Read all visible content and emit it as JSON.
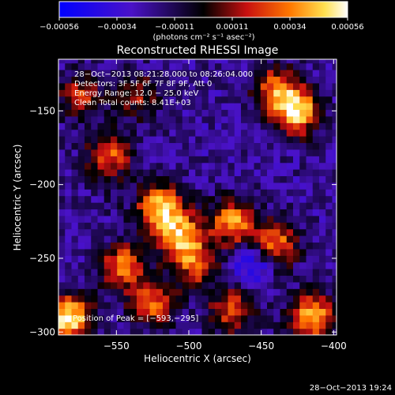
{
  "chart_data": {
    "type": "heatmap",
    "title": "Reconstructed RHESSI Image",
    "xlabel": "Heliocentric X (arcsec)",
    "ylabel": "Heliocentric Y (arcsec)",
    "xlim": [
      -590,
      -398
    ],
    "ylim": [
      -302,
      -115
    ],
    "x_ticks": [
      -550,
      -500,
      -450,
      -400
    ],
    "y_ticks": [
      -300,
      -250,
      -200,
      -150
    ],
    "x_tick_labels": [
      "−550",
      "−500",
      "−450",
      "−400"
    ],
    "y_tick_labels": [
      "−300",
      "−250",
      "−200",
      "−150"
    ],
    "colorbar": {
      "range": [
        -0.00056,
        0.00056
      ],
      "tick_labels": [
        "−0.00056",
        "−0.00034",
        "−0.00011",
        "0.00011",
        "0.00034",
        "0.00056"
      ],
      "units": "(photons cm⁻² s⁻¹ asec⁻²)"
    },
    "annotations": [
      "28−Oct−2013 08:21:28.000 to 08:26:04.000",
      "Detectors: 3F 5F 6F 7F 8F 9F, Att 0",
      "Energy Range: 12.0 − 25.0 keV",
      "Clean     Total counts: 8.41E+03"
    ],
    "peak_label": "Position of Peak = [−593,−295]",
    "peak": [
      -593,
      -295
    ],
    "hotspots": [
      {
        "x": -583,
        "y": -290,
        "value": 0.00056
      },
      {
        "x": -545,
        "y": -255,
        "value": 0.00034
      },
      {
        "x": -520,
        "y": -215,
        "value": 0.00048
      },
      {
        "x": -505,
        "y": -235,
        "value": 0.0004
      },
      {
        "x": -470,
        "y": -225,
        "value": 0.00038
      },
      {
        "x": -440,
        "y": -240,
        "value": 0.00032
      },
      {
        "x": -425,
        "y": -150,
        "value": 0.00048
      },
      {
        "x": -440,
        "y": -135,
        "value": 0.0003
      },
      {
        "x": -555,
        "y": -180,
        "value": 0.00028
      },
      {
        "x": -575,
        "y": -140,
        "value": 0.00018
      },
      {
        "x": -415,
        "y": -290,
        "value": 0.00044
      },
      {
        "x": -470,
        "y": -285,
        "value": 0.00026
      },
      {
        "x": -525,
        "y": -280,
        "value": 0.0003
      },
      {
        "x": -495,
        "y": -255,
        "value": 0.00022
      },
      {
        "x": -535,
        "y": -140,
        "value": 0.00012
      }
    ],
    "coldspots": [
      {
        "x": -455,
        "y": -253,
        "value": -0.00052
      },
      {
        "x": -490,
        "y": -165,
        "value": -0.00022
      },
      {
        "x": -555,
        "y": -210,
        "value": -0.00016
      }
    ]
  },
  "footer_timestamp": "28−Oct−2013 19:24"
}
